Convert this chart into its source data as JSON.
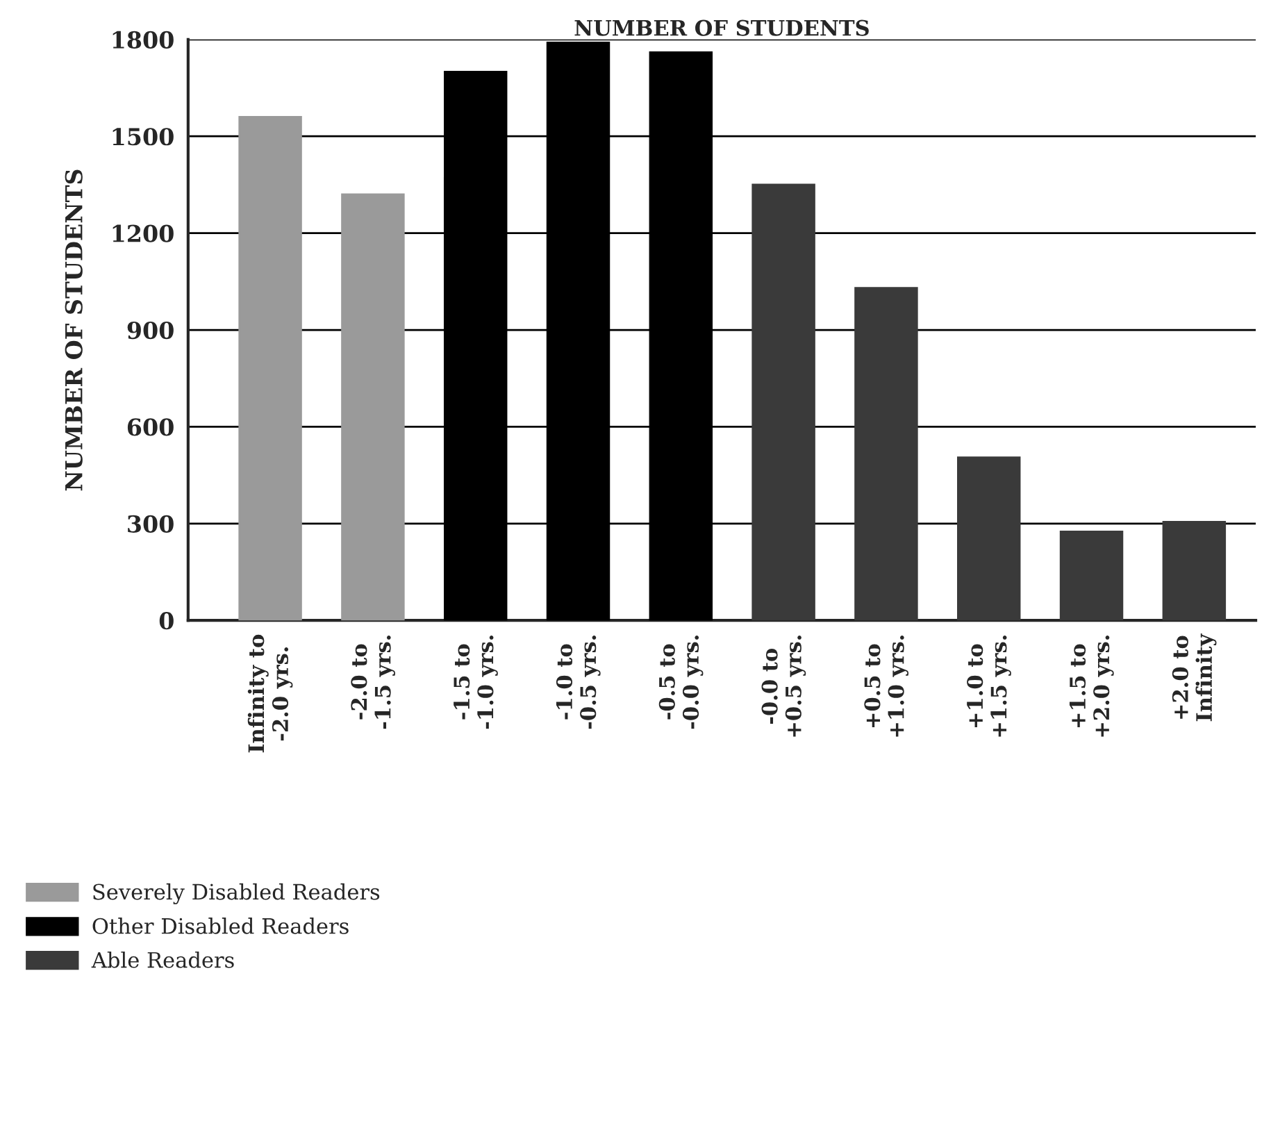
{
  "chart_data": {
    "type": "bar",
    "title": "NUMBER OF STUDENTS",
    "ylabel": "NUMBER OF STUDENTS",
    "categories": [
      "Infinity to\n-2.0 yrs.",
      "-2.0 to\n-1.5 yrs.",
      "-1.5 to\n-1.0 yrs.",
      "-1.0 to\n-0.5 yrs.",
      "-0.5 to\n-0.0 yrs.",
      "-0.0 to\n+0.5 yrs.",
      "+0.5 to\n+1.0 yrs.",
      "+1.0 to\n+1.5 yrs.",
      "+1.5 to\n+2.0 yrs.",
      "+2.0 to\nInfinity"
    ],
    "series": [
      {
        "name": "Severely Disabled Readers",
        "color": "#9a9a9a",
        "values": [
          1560,
          1320,
          null,
          null,
          null,
          null,
          null,
          null,
          null,
          null
        ]
      },
      {
        "name": "Other Disabled Readers",
        "color": "#000000",
        "values": [
          null,
          null,
          1700,
          1790,
          1760,
          null,
          null,
          null,
          null,
          null
        ]
      },
      {
        "name": "Able Readers",
        "color": "#3a3a3a",
        "values": [
          null,
          null,
          null,
          null,
          null,
          1350,
          1030,
          505,
          275,
          305
        ]
      }
    ],
    "ylim": [
      0,
      1800
    ],
    "yticks": [
      0,
      300,
      600,
      900,
      1200,
      1500,
      1800
    ],
    "grid": "y",
    "legend": "bottom left"
  }
}
